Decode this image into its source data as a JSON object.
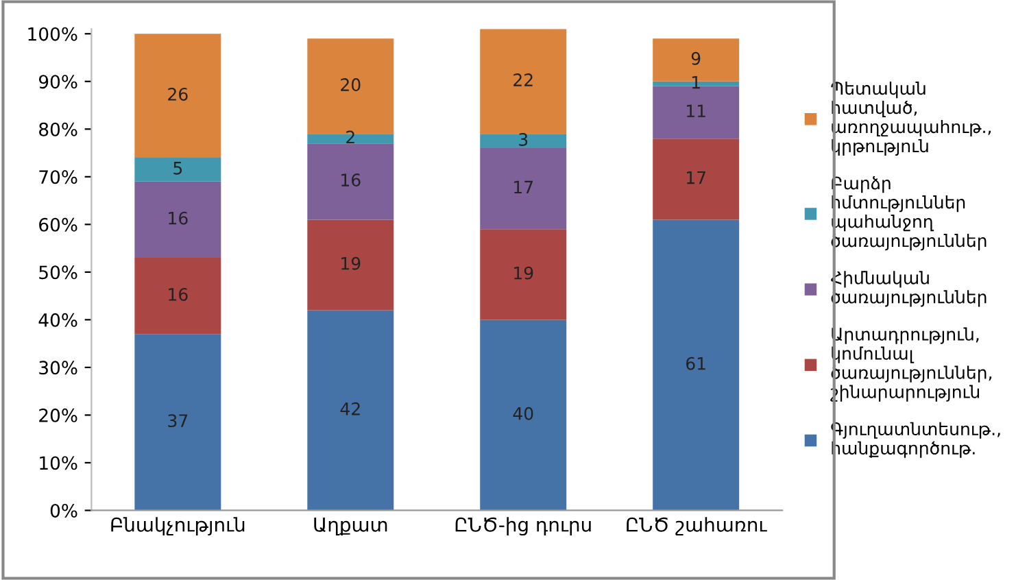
{
  "chart_data": {
    "type": "bar",
    "stacked": true,
    "data_labels": true,
    "legend": "right",
    "grid": false,
    "categories": [
      "Բնակչություն",
      "Աղքատ",
      "ԸՆԾ-ից դուրս",
      "ԸՆԾ շահառու"
    ],
    "series": [
      {
        "name": "Գյուղատնտեսութ., հանքագործութ.",
        "color": "#4572a7",
        "values": [
          37,
          42,
          40,
          61
        ]
      },
      {
        "name": "Արտադրություն, կոմունալ ծառայություններ, շինարարություն",
        "color": "#aa4643",
        "values": [
          16,
          19,
          19,
          17
        ]
      },
      {
        "name": "Հիմնական ծառայություններ",
        "color": "#7f6199",
        "values": [
          16,
          16,
          17,
          11
        ]
      },
      {
        "name": "Բարձր հմտություններ պահանջող ծառայություններ",
        "color": "#4198af",
        "values": [
          5,
          2,
          3,
          1
        ]
      },
      {
        "name": "Պետական հատված, առողջապահութ., կրթություն",
        "color": "#db843d",
        "values": [
          26,
          20,
          22,
          9
        ]
      }
    ],
    "ylim": [
      0,
      101
    ],
    "yticks": [
      {
        "value": 0,
        "label": "0%"
      },
      {
        "value": 10,
        "label": "10%"
      },
      {
        "value": 20,
        "label": "20%"
      },
      {
        "value": 30,
        "label": "30%"
      },
      {
        "value": 40,
        "label": "40%"
      },
      {
        "value": 50,
        "label": "50%"
      },
      {
        "value": 60,
        "label": "60%"
      },
      {
        "value": 70,
        "label": "70%"
      },
      {
        "value": 80,
        "label": "80%"
      },
      {
        "value": 90,
        "label": "90%"
      },
      {
        "value": 100,
        "label": "100%"
      }
    ]
  }
}
